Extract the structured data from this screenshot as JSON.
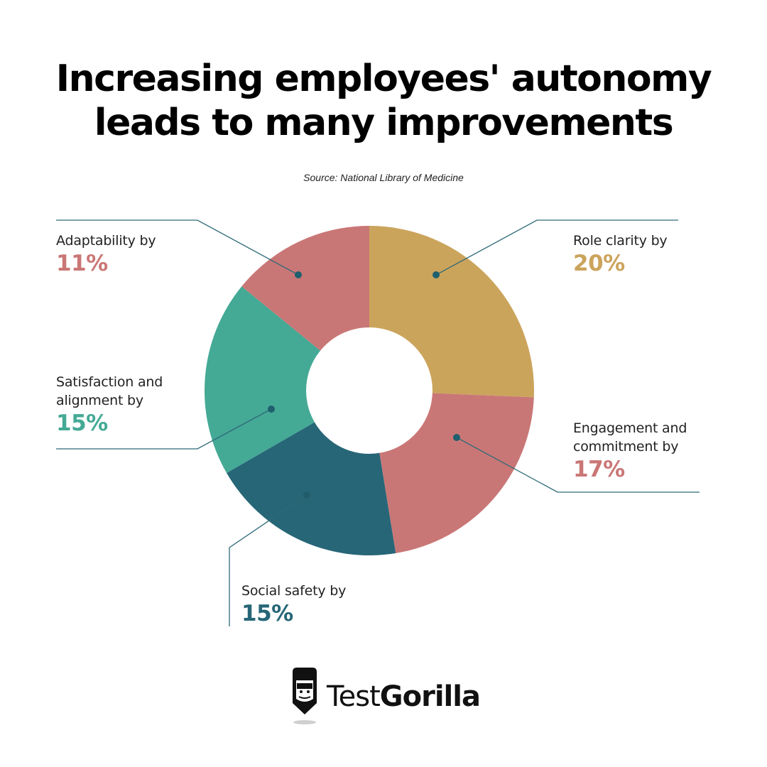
{
  "title_line1": "Increasing employees' autonomy",
  "title_line2": "leads to many improvements",
  "source": "Source: National Library of Medicine",
  "brand": {
    "light": "Test",
    "bold": "Gorilla"
  },
  "colors": {
    "pink": "#C97776",
    "gold": "#CBA45C",
    "teal": "#44A995",
    "dark_teal": "#266677",
    "leader": "#1F5F6E"
  },
  "labels": [
    {
      "caption": "Role clarity by",
      "value": "20%",
      "color": "#CBA45C"
    },
    {
      "caption": "Engagement and\ncommitment by",
      "value": "17%",
      "color": "#C97776"
    },
    {
      "caption": "Social safety by",
      "value": "15%",
      "color": "#266677"
    },
    {
      "caption": "Satisfaction and\nalignment by",
      "value": "15%",
      "color": "#44A995"
    },
    {
      "caption": "Adaptability by",
      "value": "11%",
      "color": "#C97776"
    }
  ],
  "chart_data": {
    "type": "pie",
    "variant": "donut",
    "title": "Increasing employees' autonomy leads to many improvements",
    "subtitle": "Source: National Library of Medicine",
    "categories": [
      "Role clarity",
      "Engagement and commitment",
      "Social safety",
      "Satisfaction and alignment",
      "Adaptability"
    ],
    "values": [
      20,
      17,
      15,
      15,
      11
    ],
    "unit": "%",
    "colors": [
      "#CBA45C",
      "#C97776",
      "#266677",
      "#44A995",
      "#C97776"
    ],
    "start_angle_deg": 0,
    "direction": "clockwise",
    "legend": "none (callout labels with leader lines)"
  }
}
